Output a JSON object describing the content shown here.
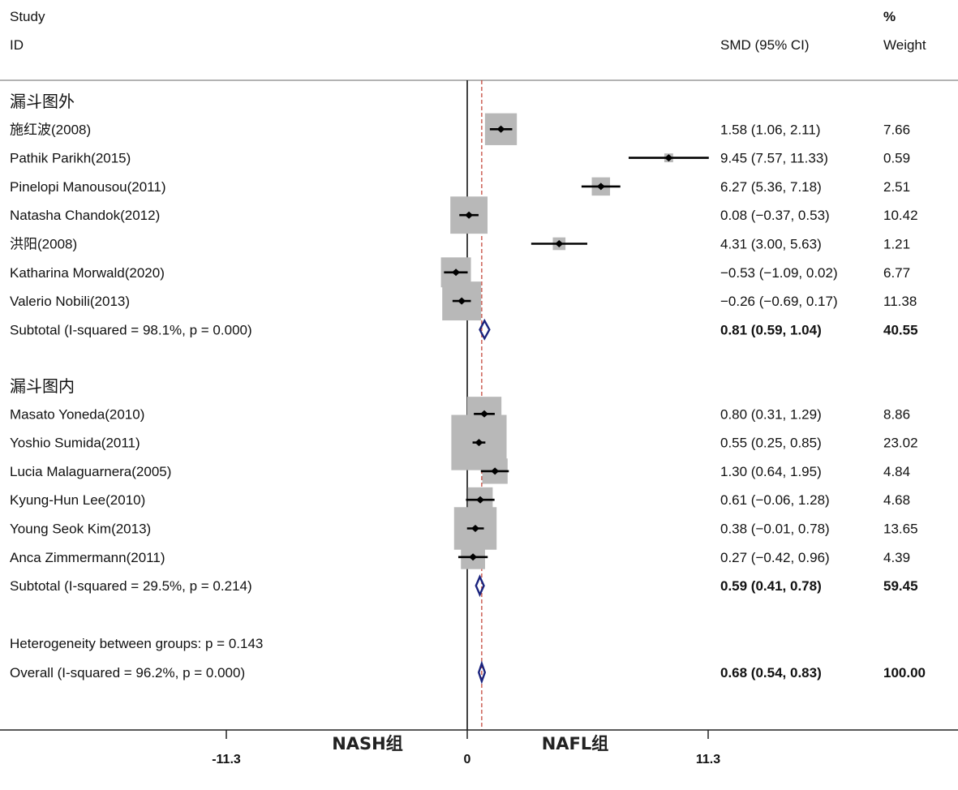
{
  "header": {
    "study": "Study",
    "id": "ID",
    "effect": "SMD (95% CI)",
    "pct": "%",
    "weight": "Weight"
  },
  "axis": {
    "left_label": "NASH组",
    "right_label": "NAFL组",
    "ticks": [
      "-11.3",
      "0",
      "11.3"
    ]
  },
  "chart_data": {
    "type": "forest",
    "measure": "SMD",
    "xlim": [
      -11.3,
      11.3
    ],
    "ticks": [
      -11.3,
      0,
      11.3
    ],
    "null_line": 0,
    "overall_line": 0.68,
    "groups": [
      {
        "name": "漏斗图外",
        "studies": [
          {
            "label": "施红波(2008)",
            "est": 1.58,
            "lo": 1.06,
            "hi": 2.11,
            "ci_text": "1.58 (1.06, 2.11)",
            "weight": 7.66,
            "weight_text": "7.66"
          },
          {
            "label": "Pathik Parikh(2015)",
            "est": 9.45,
            "lo": 7.57,
            "hi": 11.33,
            "ci_text": "9.45 (7.57, 11.33)",
            "weight": 0.59,
            "weight_text": "0.59"
          },
          {
            "label": "Pinelopi Manousou(2011)",
            "est": 6.27,
            "lo": 5.36,
            "hi": 7.18,
            "ci_text": "6.27 (5.36, 7.18)",
            "weight": 2.51,
            "weight_text": "2.51"
          },
          {
            "label": "Natasha Chandok(2012)",
            "est": 0.08,
            "lo": -0.37,
            "hi": 0.53,
            "ci_text": "0.08 (−0.37, 0.53)",
            "weight": 10.42,
            "weight_text": "10.42"
          },
          {
            "label": "洪阳(2008)",
            "est": 4.31,
            "lo": 3.0,
            "hi": 5.63,
            "ci_text": "4.31 (3.00, 5.63)",
            "weight": 1.21,
            "weight_text": "1.21"
          },
          {
            "label": "Katharina Morwald(2020)",
            "est": -0.53,
            "lo": -1.09,
            "hi": 0.02,
            "ci_text": "−0.53 (−1.09, 0.02)",
            "weight": 6.77,
            "weight_text": "6.77"
          },
          {
            "label": "Valerio Nobili(2013)",
            "est": -0.26,
            "lo": -0.69,
            "hi": 0.17,
            "ci_text": "−0.26 (−0.69, 0.17)",
            "weight": 11.38,
            "weight_text": "11.38"
          }
        ],
        "subtotal": {
          "label": "Subtotal  (I-squared = 98.1%, p = 0.000)",
          "est": 0.81,
          "lo": 0.59,
          "hi": 1.04,
          "ci_text": "0.81 (0.59, 1.04)",
          "weight_text": "40.55"
        }
      },
      {
        "name": "漏斗图内",
        "studies": [
          {
            "label": "Masato Yoneda(2010)",
            "est": 0.8,
            "lo": 0.31,
            "hi": 1.29,
            "ci_text": "0.80 (0.31, 1.29)",
            "weight": 8.86,
            "weight_text": "8.86"
          },
          {
            "label": "Yoshio Sumida(2011)",
            "est": 0.55,
            "lo": 0.25,
            "hi": 0.85,
            "ci_text": "0.55 (0.25, 0.85)",
            "weight": 23.02,
            "weight_text": "23.02"
          },
          {
            "label": "Lucia Malaguarnera(2005)",
            "est": 1.3,
            "lo": 0.64,
            "hi": 1.95,
            "ci_text": "1.30 (0.64, 1.95)",
            "weight": 4.84,
            "weight_text": "4.84"
          },
          {
            "label": "Kyung-Hun Lee(2010)",
            "est": 0.61,
            "lo": -0.06,
            "hi": 1.28,
            "ci_text": "0.61 (−0.06, 1.28)",
            "weight": 4.68,
            "weight_text": "4.68"
          },
          {
            "label": "Young Seok Kim(2013)",
            "est": 0.38,
            "lo": -0.01,
            "hi": 0.78,
            "ci_text": "0.38 (−0.01, 0.78)",
            "weight": 13.65,
            "weight_text": "13.65"
          },
          {
            "label": "Anca Zimmermann(2011)",
            "est": 0.27,
            "lo": -0.42,
            "hi": 0.96,
            "ci_text": "0.27 (−0.42, 0.96)",
            "weight": 4.39,
            "weight_text": "4.39"
          }
        ],
        "subtotal": {
          "label": "Subtotal  (I-squared = 29.5%, p = 0.214)",
          "est": 0.59,
          "lo": 0.41,
          "hi": 0.78,
          "ci_text": "0.59 (0.41, 0.78)",
          "weight_text": "59.45"
        }
      }
    ],
    "heterogeneity_between": "Heterogeneity between groups: p = 0.143",
    "overall": {
      "label": "Overall  (I-squared = 96.2%, p = 0.000)",
      "est": 0.68,
      "lo": 0.54,
      "hi": 0.83,
      "ci_text": "0.68 (0.54, 0.83)",
      "weight_text": "100.00"
    },
    "colors": {
      "box": "#b8b8b8",
      "diamond": "#1a237e",
      "overall_line": "#c0392b",
      "ci_line": "#000000"
    }
  }
}
